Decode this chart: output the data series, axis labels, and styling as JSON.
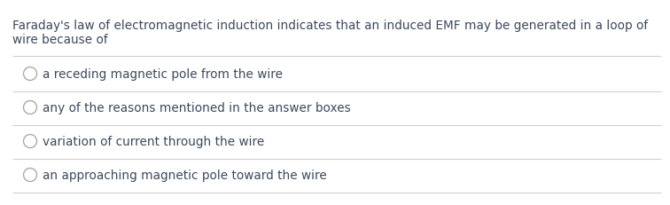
{
  "question_line1": "Faraday's law of electromagnetic induction indicates that an induced EMF may be generated in a loop of",
  "question_line2": "wire because of",
  "options": [
    "a receding magnetic pole from the wire",
    "any of the reasons mentioned in the answer boxes",
    "variation of current through the wire",
    "an approaching magnetic pole toward the wire"
  ],
  "bg_color": "#ffffff",
  "text_color": "#3d4a5c",
  "question_fontsize": 9.8,
  "option_fontsize": 9.8,
  "circle_color": "#aaaaaa",
  "line_color": "#d0d0d0",
  "font_family": "DejaVu Sans"
}
